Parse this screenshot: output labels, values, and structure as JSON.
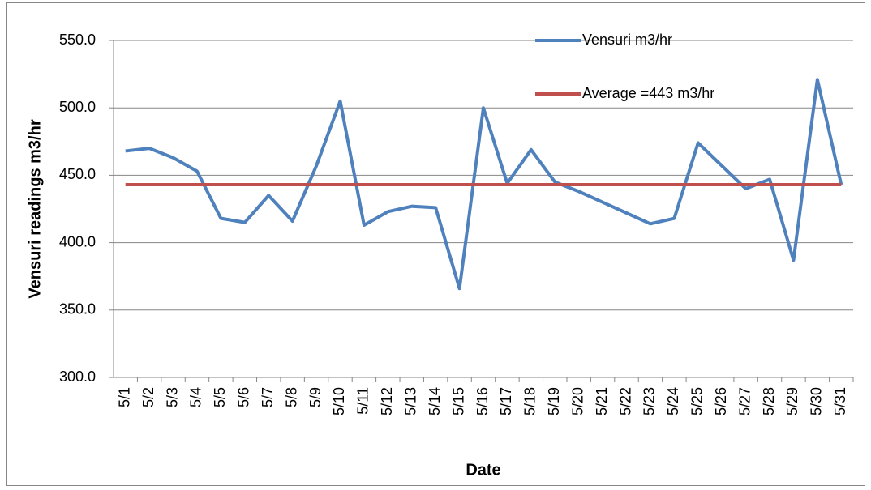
{
  "chart_data": {
    "type": "line",
    "x_label": "Date",
    "y_label": "Vensuri readings m3/hr",
    "categories": [
      "5/1",
      "5/2",
      "5/3",
      "5/4",
      "5/5",
      "5/6",
      "5/7",
      "5/8",
      "5/9",
      "5/10",
      "5/11",
      "5/12",
      "5/13",
      "5/14",
      "5/15",
      "5/16",
      "5/17",
      "5/18",
      "5/19",
      "5/20",
      "5/21",
      "5/22",
      "5/23",
      "5/24",
      "5/25",
      "5/26",
      "5/27",
      "5/28",
      "5/29",
      "5/30",
      "5/31"
    ],
    "series": [
      {
        "name": "Vensuri m3/hr",
        "color": "#4f81bd",
        "values": [
          468,
          470,
          463,
          453,
          418,
          415,
          435,
          416,
          457,
          505,
          413,
          423,
          427,
          426,
          366,
          500,
          444,
          469,
          445,
          438,
          430,
          422,
          414,
          418,
          474,
          457,
          440,
          447,
          387,
          521,
          443
        ]
      },
      {
        "name": "Average =443  m3/hr",
        "color": "#c0504d",
        "values": [
          443,
          443,
          443,
          443,
          443,
          443,
          443,
          443,
          443,
          443,
          443,
          443,
          443,
          443,
          443,
          443,
          443,
          443,
          443,
          443,
          443,
          443,
          443,
          443,
          443,
          443,
          443,
          443,
          443,
          443,
          443
        ]
      }
    ],
    "ylim": [
      300,
      550
    ],
    "yticks": [
      {
        "value": 300,
        "label": "300.0"
      },
      {
        "value": 350,
        "label": "350.0"
      },
      {
        "value": 400,
        "label": "400.0"
      },
      {
        "value": 450,
        "label": "450.0"
      },
      {
        "value": 500,
        "label": "500.0"
      },
      {
        "value": 550,
        "label": "550.0"
      }
    ],
    "grid": true,
    "legend": "upper right"
  }
}
